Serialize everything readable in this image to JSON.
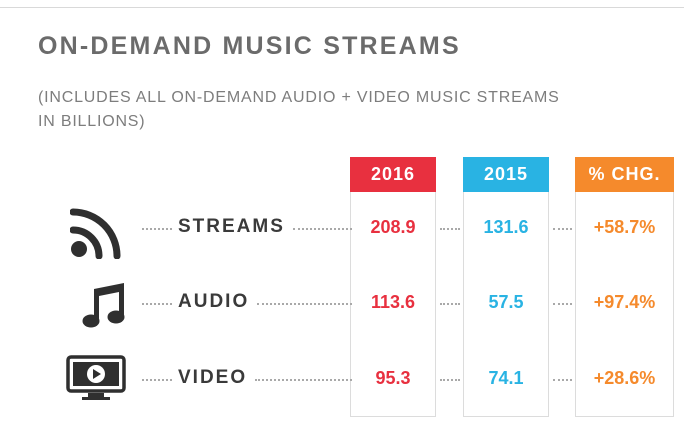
{
  "title": "ON-DEMAND MUSIC STREAMS",
  "subtitle": "(INCLUDES ALL ON-DEMAND AUDIO + VIDEO MUSIC STREAMS\nIN BILLIONS)",
  "colors": {
    "col_2016": "#e8303f",
    "col_2015": "#29b3e3",
    "col_chg": "#f58a2c",
    "icon": "#2f2f2f"
  },
  "chart_data": {
    "type": "table",
    "title": "ON-DEMAND MUSIC STREAMS",
    "columns": [
      "2016",
      "2015",
      "% CHG."
    ],
    "rows": [
      {
        "label": "STREAMS",
        "icon": "rss-stream-icon",
        "v2016": "208.9",
        "v2015": "131.6",
        "chg": "+58.7%"
      },
      {
        "label": "AUDIO",
        "icon": "music-note-icon",
        "v2016": "113.6",
        "v2015": "57.5",
        "chg": "+97.4%"
      },
      {
        "label": "VIDEO",
        "icon": "video-monitor-icon",
        "v2016": "95.3",
        "v2015": "74.1",
        "chg": "+28.6%"
      }
    ]
  }
}
